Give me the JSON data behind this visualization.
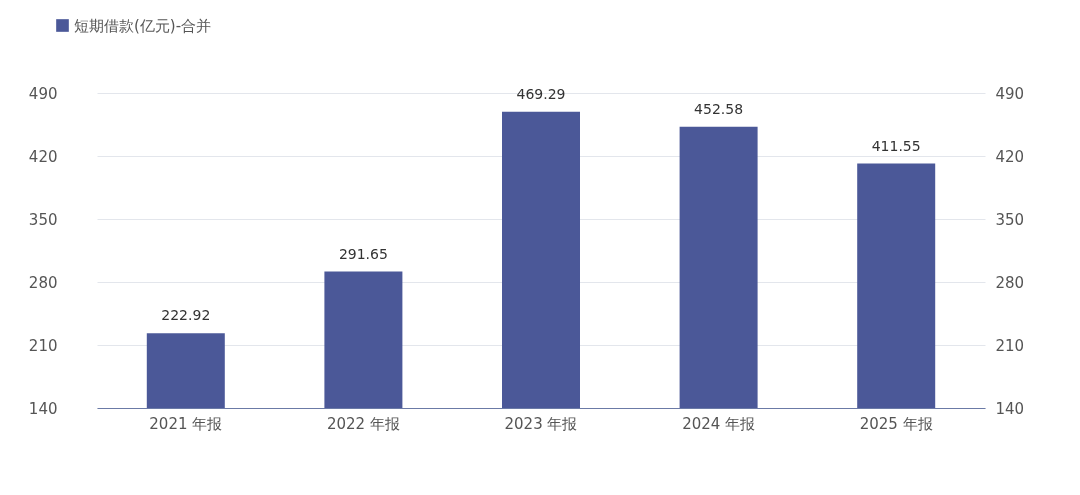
{
  "chart_data": {
    "type": "bar",
    "categories": [
      "2021 年报",
      "2022 年报",
      "2023 年报",
      "2024 年报",
      "2025 年报"
    ],
    "series": [
      {
        "name": "短期借款(亿元)-合并",
        "color": "#4b5898",
        "values": [
          222.92,
          291.65,
          469.29,
          452.58,
          411.55
        ]
      }
    ],
    "ylim": [
      140,
      490
    ],
    "yticks": [
      140,
      210,
      280,
      350,
      420,
      490
    ],
    "y2lim": [
      140,
      490
    ],
    "y2ticks": [
      140,
      210,
      280,
      350,
      420,
      490
    ],
    "data_labels": true,
    "grid": "y",
    "legend": "top left"
  }
}
